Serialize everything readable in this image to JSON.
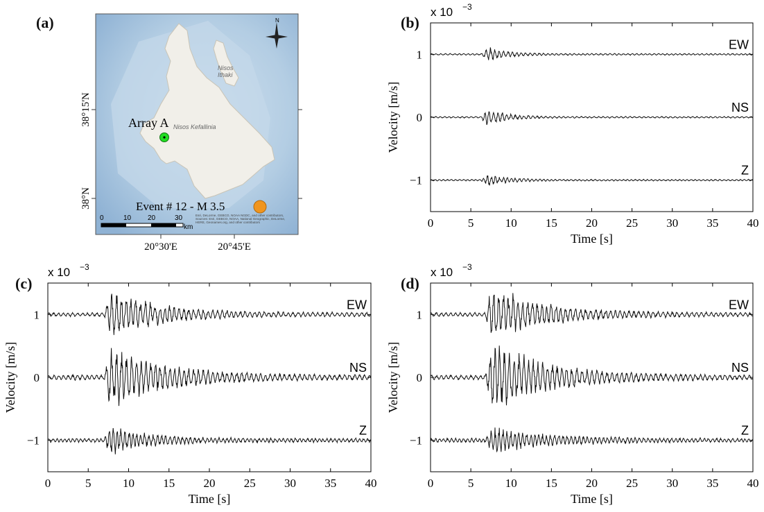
{
  "panels": {
    "a": {
      "label": "(a)"
    },
    "b": {
      "label": "(b)"
    },
    "c": {
      "label": "(c)"
    },
    "d": {
      "label": "(d)"
    }
  },
  "map": {
    "lat_labels": [
      "38°15'N",
      "38°N"
    ],
    "lon_labels": [
      "20°30'E",
      "20°45'E"
    ],
    "array_label": "Array A",
    "island_kefallinia": "Nisos Kefallinia",
    "island_ithaki": "Nisos Ithaki",
    "event_label": "Event # 12 - M 3.5",
    "scale_ticks": [
      "0",
      "10",
      "20",
      "30"
    ],
    "scale_unit": "km",
    "north_label": "N",
    "credit": "Esri, DeLorme, GEBCO, NOAA NGDC, and other contributors, Sources: Esri, GEBCO, NOAA, National Geographic, DeLorme, HERE, Geonames.org, and other contributors",
    "colors": {
      "sea": "#a9c6e0",
      "land": "#f1efe9",
      "array": "#22dd22",
      "event": "#f0951e"
    }
  },
  "chart_data": [
    {
      "panel": "b",
      "type": "line",
      "xlabel": "Time [s]",
      "ylabel": "Velocity [m/s]",
      "exponent": "x 10",
      "exponent_power": "−3",
      "xlim": [
        0,
        40
      ],
      "ylim": [
        -1.5,
        1.5
      ],
      "xticks": [
        "0",
        "5",
        "10",
        "15",
        "20",
        "25",
        "30",
        "35",
        "40"
      ],
      "yticks": [
        {
          "v": 1,
          "t": "1"
        },
        {
          "v": 0,
          "t": "0"
        },
        {
          "v": -1,
          "t": "−1"
        }
      ],
      "series": [
        {
          "name": "EW",
          "offset": 1,
          "onset": 6.3,
          "peak": 0.12,
          "decay": 2.6,
          "noise": 0.012,
          "period": 0.55,
          "seed": 11
        },
        {
          "name": "NS",
          "offset": 0,
          "onset": 6.3,
          "peak": 0.16,
          "decay": 2.4,
          "noise": 0.012,
          "period": 0.55,
          "seed": 23
        },
        {
          "name": "Z",
          "offset": -1,
          "onset": 6.3,
          "peak": 0.09,
          "decay": 2.8,
          "noise": 0.012,
          "period": 0.5,
          "seed": 37
        }
      ]
    },
    {
      "panel": "c",
      "type": "line",
      "xlabel": "Time [s]",
      "ylabel": "Velocity [m/s]",
      "exponent": "x 10",
      "exponent_power": "−3",
      "xlim": [
        0,
        40
      ],
      "ylim": [
        -1.5,
        1.5
      ],
      "xticks": [
        "0",
        "5",
        "10",
        "15",
        "20",
        "25",
        "30",
        "35",
        "40"
      ],
      "yticks": [
        {
          "v": 1,
          "t": "1"
        },
        {
          "v": 0,
          "t": "0"
        },
        {
          "v": -1,
          "t": "−1"
        }
      ],
      "series": [
        {
          "name": "EW",
          "offset": 1,
          "onset": 7.0,
          "peak": 0.38,
          "decay": 6.0,
          "noise": 0.03,
          "period": 0.6,
          "seed": 41
        },
        {
          "name": "NS",
          "offset": 0,
          "onset": 7.0,
          "peak": 0.5,
          "decay": 6.5,
          "noise": 0.04,
          "period": 0.6,
          "seed": 53
        },
        {
          "name": "Z",
          "offset": -1,
          "onset": 7.0,
          "peak": 0.2,
          "decay": 5.0,
          "noise": 0.03,
          "period": 0.5,
          "seed": 67
        }
      ]
    },
    {
      "panel": "d",
      "type": "line",
      "xlabel": "Time [s]",
      "ylabel": "Velocity [m/s]",
      "exponent": "x 10",
      "exponent_power": "−3",
      "xlim": [
        0,
        40
      ],
      "ylim": [
        -1.5,
        1.5
      ],
      "xticks": [
        "0",
        "5",
        "10",
        "15",
        "20",
        "25",
        "30",
        "35",
        "40"
      ],
      "yticks": [
        {
          "v": 1,
          "t": "1"
        },
        {
          "v": 0,
          "t": "0"
        },
        {
          "v": -1,
          "t": "−1"
        }
      ],
      "series": [
        {
          "name": "EW",
          "offset": 1,
          "onset": 6.8,
          "peak": 0.42,
          "decay": 6.5,
          "noise": 0.03,
          "period": 0.6,
          "seed": 71
        },
        {
          "name": "NS",
          "offset": 0,
          "onset": 6.8,
          "peak": 0.55,
          "decay": 7.0,
          "noise": 0.035,
          "period": 0.6,
          "seed": 83
        },
        {
          "name": "Z",
          "offset": -1,
          "onset": 6.8,
          "peak": 0.18,
          "decay": 7.0,
          "noise": 0.03,
          "period": 0.5,
          "seed": 97
        }
      ]
    }
  ]
}
